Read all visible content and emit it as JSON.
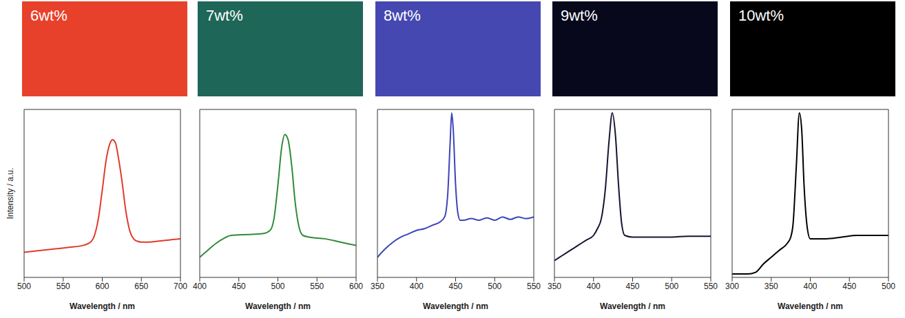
{
  "chart_data": [
    {
      "type": "line",
      "title": "6wt%",
      "x_label": "Wavelength / nm",
      "y_label": "Intensity / a.u.",
      "color": "#e03a2c",
      "xlim": [
        500,
        700
      ],
      "xticks": [
        500,
        550,
        600,
        650,
        700
      ],
      "ylim": [
        0,
        100
      ],
      "tick_labels": "x",
      "x": [
        500,
        520,
        540,
        560,
        575,
        585,
        590,
        595,
        600,
        605,
        610,
        613,
        617,
        620,
        625,
        630,
        635,
        640,
        645,
        650,
        660,
        670,
        680,
        690,
        700
      ],
      "values": [
        15,
        16,
        17,
        18,
        19,
        21,
        25,
        35,
        52,
        70,
        80,
        82,
        80,
        73,
        58,
        40,
        28,
        23,
        21.5,
        21,
        21,
        21.5,
        22,
        22.5,
        23
      ]
    },
    {
      "type": "line",
      "title": "7wt%",
      "x_label": "Wavelength / nm",
      "color": "#2e8b3a",
      "xlim": [
        400,
        600
      ],
      "xticks": [
        400,
        450,
        500,
        550,
        600
      ],
      "ylim": [
        0,
        100
      ],
      "tick_labels": "x",
      "x": [
        400,
        410,
        420,
        430,
        440,
        460,
        480,
        490,
        495,
        500,
        505,
        509,
        513,
        518,
        522,
        527,
        532,
        540,
        560,
        580,
        600
      ],
      "values": [
        12,
        16,
        20,
        23,
        25,
        25.5,
        26,
        28,
        35,
        55,
        78,
        85,
        82,
        65,
        45,
        30,
        25,
        24,
        23,
        21,
        19
      ]
    },
    {
      "type": "line",
      "title": "8wt%",
      "x_label": "Wavelength / nm",
      "color": "#3b44b8",
      "xlim": [
        350,
        550
      ],
      "xticks": [
        350,
        400,
        450,
        500,
        550
      ],
      "ylim": [
        0,
        100
      ],
      "tick_labels": "x",
      "x": [
        350,
        360,
        370,
        380,
        390,
        400,
        410,
        420,
        430,
        436,
        440,
        443,
        445,
        447,
        450,
        453,
        456,
        460,
        470,
        480,
        490,
        500,
        510,
        520,
        530,
        540,
        550
      ],
      "values": [
        12,
        17,
        21,
        24,
        26,
        28,
        29,
        31,
        33,
        36,
        50,
        80,
        98,
        88,
        55,
        38,
        34,
        34,
        35,
        34,
        35.5,
        34,
        36,
        34.5,
        36,
        35,
        36
      ]
    },
    {
      "type": "line",
      "title": "9wt%",
      "x_label": "Wavelength / nm",
      "color": "#141432",
      "xlim": [
        350,
        550
      ],
      "xticks": [
        350,
        400,
        450,
        500,
        550
      ],
      "ylim": [
        0,
        100
      ],
      "tick_labels": "x",
      "x": [
        350,
        360,
        370,
        380,
        390,
        400,
        405,
        410,
        415,
        420,
        424,
        428,
        432,
        436,
        440,
        450,
        470,
        500,
        520,
        550
      ],
      "values": [
        10,
        13,
        16,
        19,
        22,
        25,
        29,
        35,
        52,
        82,
        98,
        85,
        55,
        32,
        25,
        24,
        24,
        24,
        24.5,
        24.5
      ]
    },
    {
      "type": "line",
      "title": "10wt%",
      "x_label": "Wavelength / nm",
      "color": "#000000",
      "xlim": [
        300,
        500
      ],
      "xticks": [
        300,
        350,
        400,
        450,
        500
      ],
      "ylim": [
        0,
        100
      ],
      "tick_labels": "x",
      "x": [
        300,
        320,
        330,
        340,
        350,
        360,
        370,
        375,
        378,
        382,
        386,
        389,
        392,
        396,
        400,
        420,
        440,
        460,
        480,
        500
      ],
      "values": [
        2,
        2,
        3,
        8,
        12,
        16,
        20,
        24,
        32,
        65,
        98,
        88,
        55,
        30,
        23,
        23,
        24,
        25,
        25,
        25
      ]
    }
  ]
}
